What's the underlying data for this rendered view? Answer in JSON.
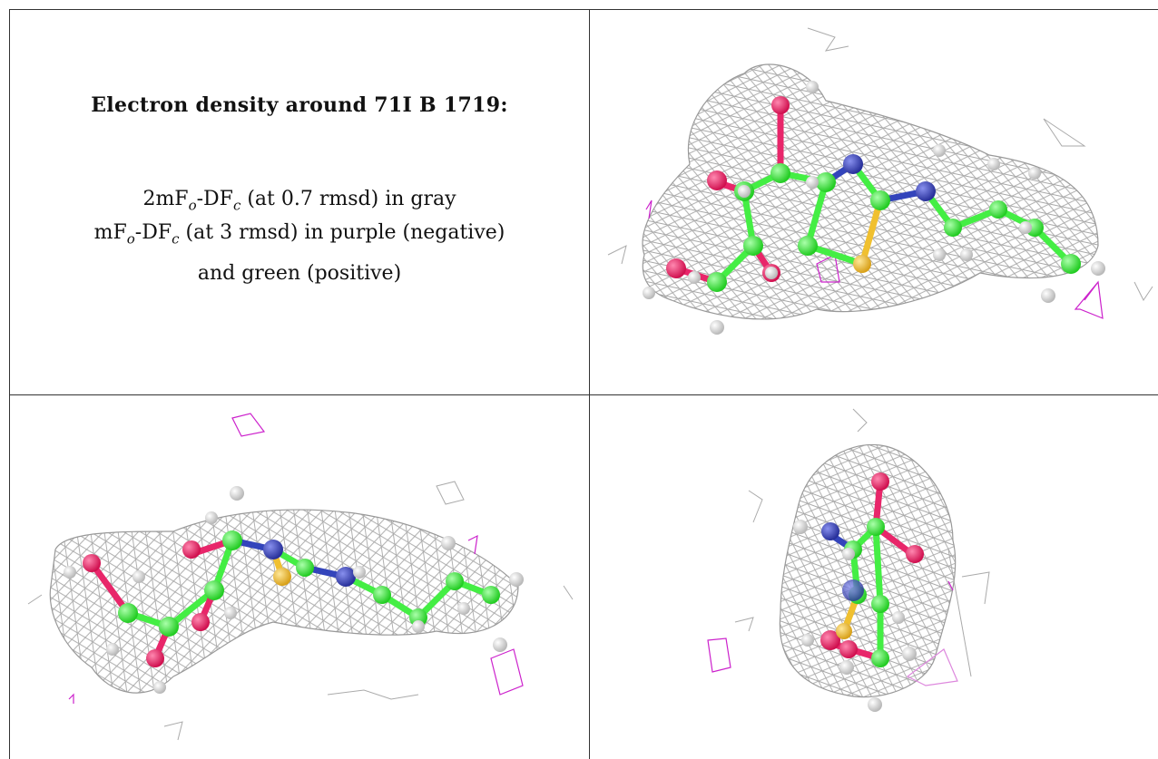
{
  "caption": {
    "title": "Electron density around 71I B 1719:",
    "line1": {
      "prefix": "2mF",
      "sub1": "o",
      "mid": "-DF",
      "sub2": "c",
      "suffix": " (at 0.7 rmsd) in gray"
    },
    "line2": {
      "prefix": "mF",
      "sub1": "o",
      "mid": "-DF",
      "sub2": "c",
      "suffix": " (at 3 rmsd) in purple (negative)"
    },
    "line3": "and green (positive)"
  },
  "colors": {
    "mesh_gray": "#9a9a9a",
    "mesh_purple": "#cc22cc",
    "carbon": "#44ee44",
    "oxygen": "#e8266a",
    "nitrogen": "#3344bb",
    "sulfur": "#f0c030",
    "hydrogen": "#e6e6e6"
  }
}
